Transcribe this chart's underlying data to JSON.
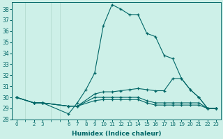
{
  "xlabel": "Humidex (Indice chaleur)",
  "bg_color": "#cdf0e8",
  "grid_color": "#b0d8cc",
  "line_color": "#006666",
  "xlim": [
    -0.5,
    23.5
  ],
  "ylim": [
    28,
    38.6
  ],
  "xticks": [
    0,
    2,
    3,
    6,
    7,
    8,
    9,
    10,
    11,
    12,
    13,
    14,
    15,
    16,
    17,
    18,
    19,
    20,
    21,
    22,
    23
  ],
  "yticks": [
    28,
    29,
    30,
    31,
    32,
    33,
    34,
    35,
    36,
    37,
    38
  ],
  "lines": [
    {
      "x": [
        0,
        2,
        3,
        6,
        7,
        8,
        9,
        10,
        11,
        12,
        13,
        14,
        15,
        16,
        17,
        18,
        19,
        20,
        21,
        22,
        23
      ],
      "y": [
        30,
        29.5,
        29.5,
        28.5,
        29.5,
        30.7,
        32.2,
        36.5,
        38.4,
        38.0,
        37.5,
        37.5,
        35.8,
        35.5,
        33.8,
        33.5,
        31.7,
        30.7,
        30.0,
        29.0,
        29.0
      ]
    },
    {
      "x": [
        0,
        2,
        3,
        6,
        7,
        9,
        10,
        11,
        12,
        13,
        14,
        15,
        16,
        17,
        18,
        19,
        20,
        21,
        22,
        23
      ],
      "y": [
        30,
        29.5,
        29.5,
        29.2,
        29.2,
        30.3,
        30.5,
        30.5,
        30.6,
        30.7,
        30.8,
        30.7,
        30.6,
        30.6,
        31.7,
        31.7,
        30.7,
        30.0,
        29.0,
        29.0
      ]
    },
    {
      "x": [
        0,
        2,
        3,
        6,
        7,
        9,
        10,
        11,
        12,
        13,
        14,
        15,
        16,
        17,
        18,
        19,
        20,
        21,
        22,
        23
      ],
      "y": [
        30,
        29.5,
        29.5,
        29.2,
        29.2,
        30.0,
        30.0,
        30.0,
        30.0,
        30.0,
        30.0,
        29.7,
        29.5,
        29.5,
        29.5,
        29.5,
        29.5,
        29.5,
        29.0,
        29.0
      ]
    },
    {
      "x": [
        0,
        2,
        3,
        6,
        7,
        9,
        10,
        11,
        12,
        13,
        14,
        15,
        16,
        17,
        18,
        19,
        20,
        21,
        22,
        23
      ],
      "y": [
        30,
        29.5,
        29.5,
        29.2,
        29.2,
        29.7,
        29.8,
        29.8,
        29.8,
        29.8,
        29.8,
        29.5,
        29.3,
        29.3,
        29.3,
        29.3,
        29.3,
        29.3,
        29.0,
        29.0
      ]
    }
  ]
}
